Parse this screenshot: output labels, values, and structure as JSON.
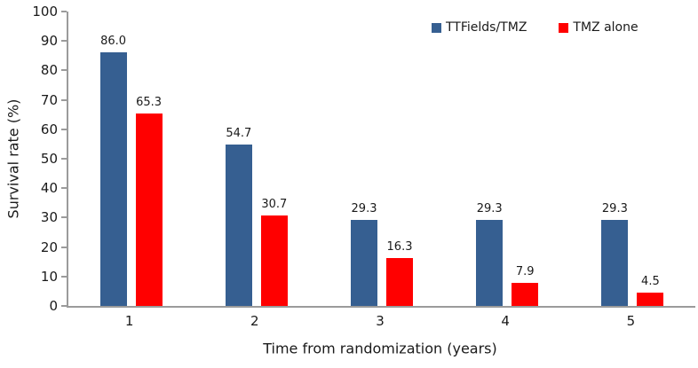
{
  "colors": {
    "series_ttfields_tmz": "#365F91",
    "series_tmz_alone": "#FF0000",
    "axis_line": "#9B9B9B",
    "text": "#1A1A1A"
  },
  "chart_data": {
    "type": "bar",
    "title": "",
    "xlabel": "Time from randomization (years)",
    "ylabel": "Survival rate (%)",
    "categories": [
      "1",
      "2",
      "3",
      "4",
      "5"
    ],
    "series": [
      {
        "name": "TTFields/TMZ",
        "color": "#365F91",
        "values": [
          86.0,
          54.7,
          29.3,
          29.3,
          29.3
        ],
        "labels": [
          "86.0",
          "54.7",
          "29.3",
          "29.3",
          "29.3"
        ]
      },
      {
        "name": "TMZ alone",
        "color": "#FF0000",
        "values": [
          65.3,
          30.7,
          16.3,
          7.9,
          4.5
        ],
        "labels": [
          "65.3",
          "30.7",
          "16.3",
          "7.9",
          "4.5"
        ]
      }
    ],
    "ylim": [
      0,
      100
    ],
    "ytick_step": 10,
    "ytick_labels": [
      "0",
      "10",
      "20",
      "30",
      "40",
      "50",
      "60",
      "70",
      "80",
      "90",
      "100"
    ],
    "grid": false,
    "legend_position": "top"
  }
}
